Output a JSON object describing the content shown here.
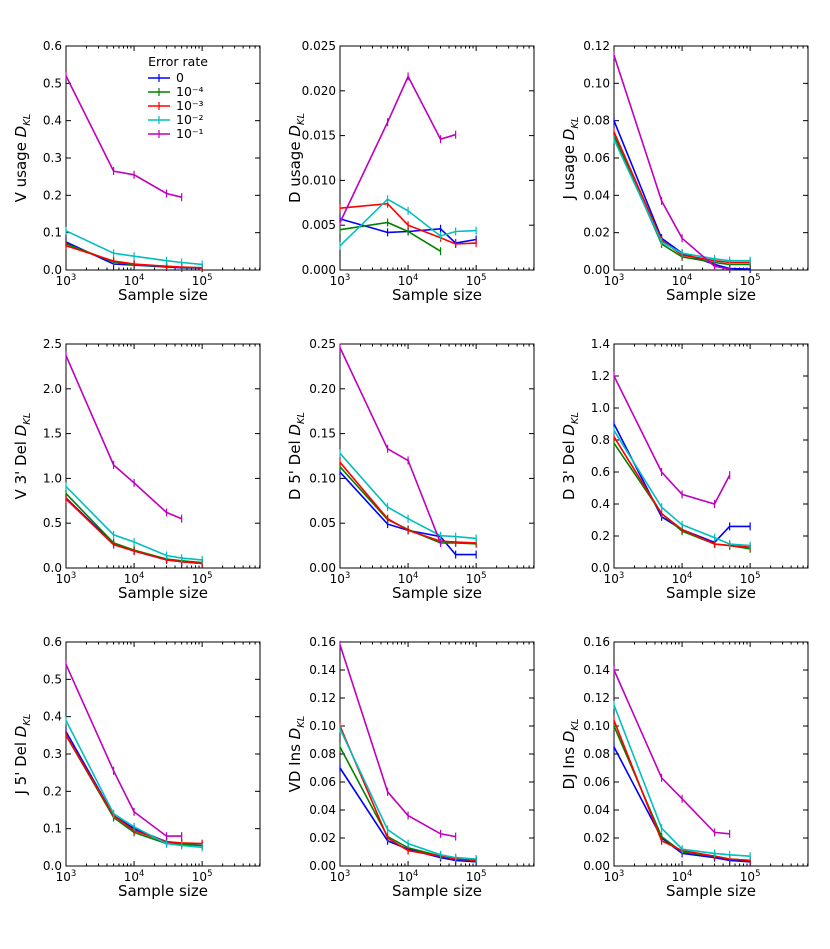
{
  "legend": {
    "title": "Error rate",
    "entries": [
      {
        "label": "0",
        "color": "#0000ff"
      },
      {
        "label": "10⁻⁴",
        "color": "#008000"
      },
      {
        "label": "10⁻³",
        "color": "#ff0000"
      },
      {
        "label": "10⁻²",
        "color": "#00bfbf"
      },
      {
        "label": "10⁻¹",
        "color": "#bf00bf"
      }
    ]
  },
  "chart_data": [
    {
      "type": "line",
      "title": "",
      "xlabel": "Sample size",
      "ylabel": "V usage",
      "ylim": [
        0,
        0.6
      ],
      "yticks": [
        "0.0",
        "0.1",
        "0.2",
        "0.3",
        "0.4",
        "0.5",
        "0.6"
      ],
      "series": [
        {
          "name": "0",
          "x": [
            1000,
            5000,
            10000,
            30000,
            50000,
            100000
          ],
          "y": [
            0.075,
            0.016,
            0.013,
            0.008,
            0.006,
            0.005
          ]
        },
        {
          "name": "1e-4",
          "x": [
            1000,
            5000,
            10000,
            30000,
            50000,
            100000
          ],
          "y": [
            0.07,
            0.022,
            0.014,
            0.01,
            0.007,
            0.006
          ]
        },
        {
          "name": "1e-3",
          "x": [
            1000,
            5000,
            10000,
            30000,
            50000,
            100000
          ],
          "y": [
            0.065,
            0.024,
            0.016,
            0.01,
            0.008,
            0.006
          ]
        },
        {
          "name": "1e-2",
          "x": [
            1000,
            5000,
            10000,
            30000,
            50000,
            100000
          ],
          "y": [
            0.105,
            0.045,
            0.037,
            0.025,
            0.02,
            0.015
          ]
        },
        {
          "name": "1e-1",
          "x": [
            1000,
            5000,
            10000,
            30000,
            50000
          ],
          "y": [
            0.52,
            0.265,
            0.255,
            0.205,
            0.195
          ]
        }
      ]
    },
    {
      "type": "line",
      "title": "",
      "xlabel": "Sample size",
      "ylabel": "D usage",
      "ylim": [
        0,
        0.025
      ],
      "yticks": [
        "0.000",
        "0.005",
        "0.010",
        "0.015",
        "0.020",
        "0.025"
      ],
      "series": [
        {
          "name": "0",
          "x": [
            1000,
            5000,
            10000,
            30000,
            50000,
            100000
          ],
          "y": [
            0.0057,
            0.0042,
            0.0043,
            0.0046,
            0.003,
            0.0034
          ]
        },
        {
          "name": "1e-4",
          "x": [
            1000,
            5000,
            10000,
            30000
          ],
          "y": [
            0.0045,
            0.0053,
            0.0043,
            0.0021
          ]
        },
        {
          "name": "1e-3",
          "x": [
            1000,
            5000,
            10000,
            30000,
            50000,
            100000
          ],
          "y": [
            0.0069,
            0.0074,
            0.005,
            0.0036,
            0.0029,
            0.003
          ]
        },
        {
          "name": "1e-2",
          "x": [
            1000,
            5000,
            10000,
            30000,
            50000,
            100000
          ],
          "y": [
            0.0027,
            0.0079,
            0.0066,
            0.0038,
            0.0043,
            0.0044
          ]
        },
        {
          "name": "1e-1",
          "x": [
            1000,
            5000,
            10000,
            30000,
            50000
          ],
          "y": [
            0.0053,
            0.0165,
            0.0216,
            0.0146,
            0.0151
          ]
        }
      ]
    },
    {
      "type": "line",
      "title": "",
      "xlabel": "Sample size",
      "ylabel": "J usage",
      "ylim": [
        0,
        0.12
      ],
      "yticks": [
        "0.00",
        "0.02",
        "0.04",
        "0.06",
        "0.08",
        "0.10",
        "0.12"
      ],
      "series": [
        {
          "name": "0",
          "x": [
            1000,
            5000,
            10000,
            30000,
            50000,
            100000
          ],
          "y": [
            0.08,
            0.017,
            0.009,
            0.003,
            0.0008,
            0.0005
          ]
        },
        {
          "name": "1e-4",
          "x": [
            1000,
            5000,
            10000,
            30000,
            50000,
            100000
          ],
          "y": [
            0.072,
            0.014,
            0.007,
            0.004,
            0.003,
            0.003
          ]
        },
        {
          "name": "1e-3",
          "x": [
            1000,
            5000,
            10000,
            30000,
            50000,
            100000
          ],
          "y": [
            0.074,
            0.016,
            0.008,
            0.005,
            0.004,
            0.004
          ]
        },
        {
          "name": "1e-2",
          "x": [
            1000,
            5000,
            10000,
            30000,
            50000,
            100000
          ],
          "y": [
            0.07,
            0.015,
            0.009,
            0.006,
            0.005,
            0.005
          ]
        },
        {
          "name": "1e-1",
          "x": [
            1000,
            5000,
            10000,
            30000,
            50000
          ],
          "y": [
            0.115,
            0.037,
            0.017,
            0.002,
            0.0005
          ]
        }
      ]
    },
    {
      "type": "line",
      "title": "",
      "xlabel": "Sample size",
      "ylabel": "V 3' Del",
      "ylim": [
        0,
        2.5
      ],
      "yticks": [
        "0.0",
        "0.5",
        "1.0",
        "1.5",
        "2.0",
        "2.5"
      ],
      "series": [
        {
          "name": "0",
          "x": [
            1000,
            5000,
            10000,
            30000,
            50000,
            100000
          ],
          "y": [
            0.78,
            0.27,
            0.19,
            0.09,
            0.07,
            0.05
          ]
        },
        {
          "name": "1e-4",
          "x": [
            1000,
            5000,
            10000,
            30000,
            50000,
            100000
          ],
          "y": [
            0.83,
            0.28,
            0.2,
            0.1,
            0.08,
            0.06
          ]
        },
        {
          "name": "1e-3",
          "x": [
            1000,
            5000,
            10000,
            30000,
            50000,
            100000
          ],
          "y": [
            0.77,
            0.26,
            0.19,
            0.09,
            0.07,
            0.05
          ]
        },
        {
          "name": "1e-2",
          "x": [
            1000,
            5000,
            10000,
            30000,
            50000,
            100000
          ],
          "y": [
            0.91,
            0.37,
            0.29,
            0.14,
            0.11,
            0.09
          ]
        },
        {
          "name": "1e-1",
          "x": [
            1000,
            5000,
            10000,
            30000,
            50000
          ],
          "y": [
            2.37,
            1.15,
            0.95,
            0.62,
            0.55
          ]
        }
      ]
    },
    {
      "type": "line",
      "title": "",
      "xlabel": "Sample size",
      "ylabel": "D 5' Del",
      "ylim": [
        0,
        0.25
      ],
      "yticks": [
        "0.00",
        "0.05",
        "0.10",
        "0.15",
        "0.20",
        "0.25"
      ],
      "series": [
        {
          "name": "0",
          "x": [
            1000,
            5000,
            10000,
            30000,
            50000,
            100000
          ],
          "y": [
            0.107,
            0.049,
            0.042,
            0.035,
            0.015,
            0.015
          ]
        },
        {
          "name": "1e-4",
          "x": [
            1000,
            5000,
            10000,
            30000,
            50000,
            100000
          ],
          "y": [
            0.113,
            0.054,
            0.043,
            0.028,
            0.028,
            0.027
          ]
        },
        {
          "name": "1e-3",
          "x": [
            1000,
            5000,
            10000,
            30000,
            50000,
            100000
          ],
          "y": [
            0.118,
            0.055,
            0.042,
            0.03,
            0.029,
            0.028
          ]
        },
        {
          "name": "1e-2",
          "x": [
            1000,
            5000,
            10000,
            30000,
            50000,
            100000
          ],
          "y": [
            0.128,
            0.068,
            0.055,
            0.036,
            0.035,
            0.033
          ]
        },
        {
          "name": "1e-1",
          "x": [
            1000,
            5000,
            10000,
            30000
          ],
          "y": [
            0.246,
            0.133,
            0.12,
            0.028
          ]
        }
      ]
    },
    {
      "type": "line",
      "title": "",
      "xlabel": "Sample size",
      "ylabel": "D 3' Del",
      "ylim": [
        0,
        1.4
      ],
      "yticks": [
        "0.0",
        "0.2",
        "0.4",
        "0.6",
        "0.8",
        "1.0",
        "1.2",
        "1.4"
      ],
      "series": [
        {
          "name": "0",
          "x": [
            1000,
            5000,
            10000,
            30000,
            50000,
            100000
          ],
          "y": [
            0.9,
            0.32,
            0.24,
            0.16,
            0.26,
            0.26
          ]
        },
        {
          "name": "1e-4",
          "x": [
            1000,
            5000,
            10000,
            30000,
            50000,
            100000
          ],
          "y": [
            0.78,
            0.34,
            0.23,
            0.15,
            0.14,
            0.12
          ]
        },
        {
          "name": "1e-3",
          "x": [
            1000,
            5000,
            10000,
            30000,
            50000,
            100000
          ],
          "y": [
            0.82,
            0.34,
            0.24,
            0.15,
            0.14,
            0.13
          ]
        },
        {
          "name": "1e-2",
          "x": [
            1000,
            5000,
            10000,
            30000,
            50000,
            100000
          ],
          "y": [
            0.86,
            0.38,
            0.27,
            0.19,
            0.15,
            0.14
          ]
        },
        {
          "name": "1e-1",
          "x": [
            1000,
            5000,
            10000,
            30000,
            50000
          ],
          "y": [
            1.2,
            0.6,
            0.46,
            0.4,
            0.58
          ]
        }
      ]
    },
    {
      "type": "line",
      "title": "",
      "xlabel": "Sample size",
      "ylabel": "J 5' Del",
      "ylim": [
        0,
        0.6
      ],
      "yticks": [
        "0.0",
        "0.1",
        "0.2",
        "0.3",
        "0.4",
        "0.5",
        "0.6"
      ],
      "series": [
        {
          "name": "0",
          "x": [
            1000,
            5000,
            10000,
            30000,
            50000,
            100000
          ],
          "y": [
            0.36,
            0.135,
            0.1,
            0.065,
            0.06,
            0.055
          ]
        },
        {
          "name": "1e-4",
          "x": [
            1000,
            5000,
            10000,
            30000,
            50000,
            100000
          ],
          "y": [
            0.35,
            0.13,
            0.09,
            0.06,
            0.058,
            0.055
          ]
        },
        {
          "name": "1e-3",
          "x": [
            1000,
            5000,
            10000,
            30000,
            50000,
            100000
          ],
          "y": [
            0.35,
            0.135,
            0.095,
            0.065,
            0.062,
            0.06
          ]
        },
        {
          "name": "1e-2",
          "x": [
            1000,
            5000,
            10000,
            30000,
            50000,
            100000
          ],
          "y": [
            0.39,
            0.14,
            0.105,
            0.06,
            0.055,
            0.05
          ]
        },
        {
          "name": "1e-1",
          "x": [
            1000,
            5000,
            10000,
            30000,
            50000
          ],
          "y": [
            0.54,
            0.255,
            0.145,
            0.08,
            0.08
          ]
        }
      ]
    },
    {
      "type": "line",
      "title": "",
      "xlabel": "Sample size",
      "ylabel": "VD Ins",
      "ylim": [
        0,
        0.16
      ],
      "yticks": [
        "0.00",
        "0.02",
        "0.04",
        "0.06",
        "0.08",
        "0.10",
        "0.12",
        "0.14",
        "0.16"
      ],
      "series": [
        {
          "name": "0",
          "x": [
            1000,
            5000,
            10000,
            30000,
            50000,
            100000
          ],
          "y": [
            0.07,
            0.018,
            0.012,
            0.006,
            0.004,
            0.003
          ]
        },
        {
          "name": "1e-4",
          "x": [
            1000,
            5000,
            10000,
            30000,
            50000,
            100000
          ],
          "y": [
            0.085,
            0.021,
            0.013,
            0.007,
            0.005,
            0.004
          ]
        },
        {
          "name": "1e-3",
          "x": [
            1000,
            5000,
            10000,
            30000,
            50000,
            100000
          ],
          "y": [
            0.1,
            0.02,
            0.011,
            0.007,
            0.005,
            0.004
          ]
        },
        {
          "name": "1e-2",
          "x": [
            1000,
            5000,
            10000,
            30000,
            50000,
            100000
          ],
          "y": [
            0.098,
            0.026,
            0.016,
            0.008,
            0.006,
            0.005
          ]
        },
        {
          "name": "1e-1",
          "x": [
            1000,
            5000,
            10000,
            30000,
            50000
          ],
          "y": [
            0.158,
            0.053,
            0.036,
            0.023,
            0.021
          ]
        }
      ]
    },
    {
      "type": "line",
      "title": "",
      "xlabel": "Sample size",
      "ylabel": "DJ Ins",
      "ylim": [
        0,
        0.16
      ],
      "yticks": [
        "0.00",
        "0.02",
        "0.04",
        "0.06",
        "0.08",
        "0.10",
        "0.12",
        "0.14",
        "0.16"
      ],
      "series": [
        {
          "name": "0",
          "x": [
            1000,
            5000,
            10000,
            30000,
            50000,
            100000
          ],
          "y": [
            0.085,
            0.02,
            0.009,
            0.006,
            0.004,
            0.003
          ]
        },
        {
          "name": "1e-4",
          "x": [
            1000,
            5000,
            10000,
            30000,
            50000,
            100000
          ],
          "y": [
            0.1,
            0.021,
            0.01,
            0.007,
            0.005,
            0.004
          ]
        },
        {
          "name": "1e-3",
          "x": [
            1000,
            5000,
            10000,
            30000,
            50000,
            100000
          ],
          "y": [
            0.104,
            0.018,
            0.011,
            0.007,
            0.005,
            0.004
          ]
        },
        {
          "name": "1e-2",
          "x": [
            1000,
            5000,
            10000,
            30000,
            50000,
            100000
          ],
          "y": [
            0.115,
            0.027,
            0.012,
            0.009,
            0.008,
            0.007
          ]
        },
        {
          "name": "1e-1",
          "x": [
            1000,
            5000,
            10000,
            30000,
            50000
          ],
          "y": [
            0.14,
            0.063,
            0.048,
            0.024,
            0.023
          ]
        }
      ]
    }
  ],
  "xaxis": {
    "xlim_log10": [
      3,
      5.85
    ],
    "tick_mantissa": "10",
    "tick_exponents": [
      "3",
      "4",
      "5"
    ]
  },
  "dkl_symbol": "D",
  "dkl_subscript": "KL"
}
